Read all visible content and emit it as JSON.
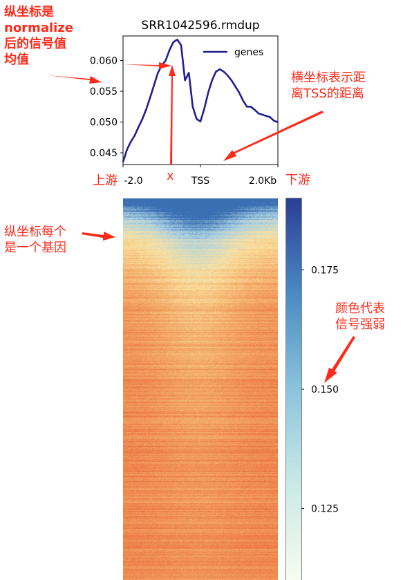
{
  "chart_data": [
    {
      "type": "line",
      "title": "SRR1042596.rmdup",
      "xlabel": "",
      "ylabel": "",
      "x_ticks": [
        "-2.0",
        "TSS",
        "2.0Kb"
      ],
      "x": [
        -2.0,
        -1.9,
        -1.8,
        -1.7,
        -1.6,
        -1.5,
        -1.4,
        -1.3,
        -1.2,
        -1.1,
        -1.0,
        -0.9,
        -0.8,
        -0.7,
        -0.6,
        -0.5,
        -0.4,
        -0.3,
        -0.2,
        -0.1,
        0.0,
        0.1,
        0.2,
        0.3,
        0.4,
        0.5,
        0.6,
        0.7,
        0.8,
        0.9,
        1.0,
        1.1,
        1.2,
        1.3,
        1.4,
        1.5,
        1.6,
        1.7,
        1.8,
        1.9,
        2.0
      ],
      "series": [
        {
          "name": "genes",
          "color": "#1f1f8f",
          "values": [
            0.0435,
            0.0455,
            0.0468,
            0.0478,
            0.0492,
            0.0505,
            0.0521,
            0.054,
            0.056,
            0.058,
            0.0592,
            0.06,
            0.0617,
            0.063,
            0.0634,
            0.0625,
            0.0568,
            0.058,
            0.0525,
            0.0505,
            0.0501,
            0.0522,
            0.0548,
            0.0568,
            0.0582,
            0.0586,
            0.0582,
            0.0576,
            0.0568,
            0.0558,
            0.0548,
            0.0535,
            0.0525,
            0.0525,
            0.052,
            0.0514,
            0.0512,
            0.051,
            0.0508,
            0.0502,
            0.05
          ]
        }
      ],
      "y_ticks": [
        0.045,
        0.05,
        0.055,
        0.06
      ],
      "ylim": [
        0.0431,
        0.064
      ],
      "xlim": [
        -2.0,
        2.0
      ],
      "grid": false,
      "legend": "top-right"
    },
    {
      "type": "heatmap",
      "colormap": "RdYlBu",
      "colorbar_ticks": [
        0.125,
        0.15,
        0.175
      ],
      "colorbar_range": [
        0.11,
        0.19
      ],
      "colormap_stops": [
        "#f7fcf0",
        "#cbeae6",
        "#8cc4dd",
        "#4a8bc2",
        "#2c3e96"
      ],
      "heat_stops": [
        "#eb6a3a",
        "#f3a664",
        "#fbe2a0",
        "#a9d1e4",
        "#3a6fb3"
      ]
    }
  ],
  "annotations": {
    "ylabel_note": "纵坐标是\nnormalize\n后的信号值\n均值",
    "xlabel_note": "横坐标表示距\n离TSS的距离",
    "upstream": "上游",
    "downstream": "下游",
    "x_marker": "x",
    "rows_note": "纵坐标每个\n是一个基因",
    "color_note": "颜色代表\n信号强弱"
  },
  "colors": {
    "annotation": "#ff2a1a",
    "line": "#1f1f8f"
  }
}
